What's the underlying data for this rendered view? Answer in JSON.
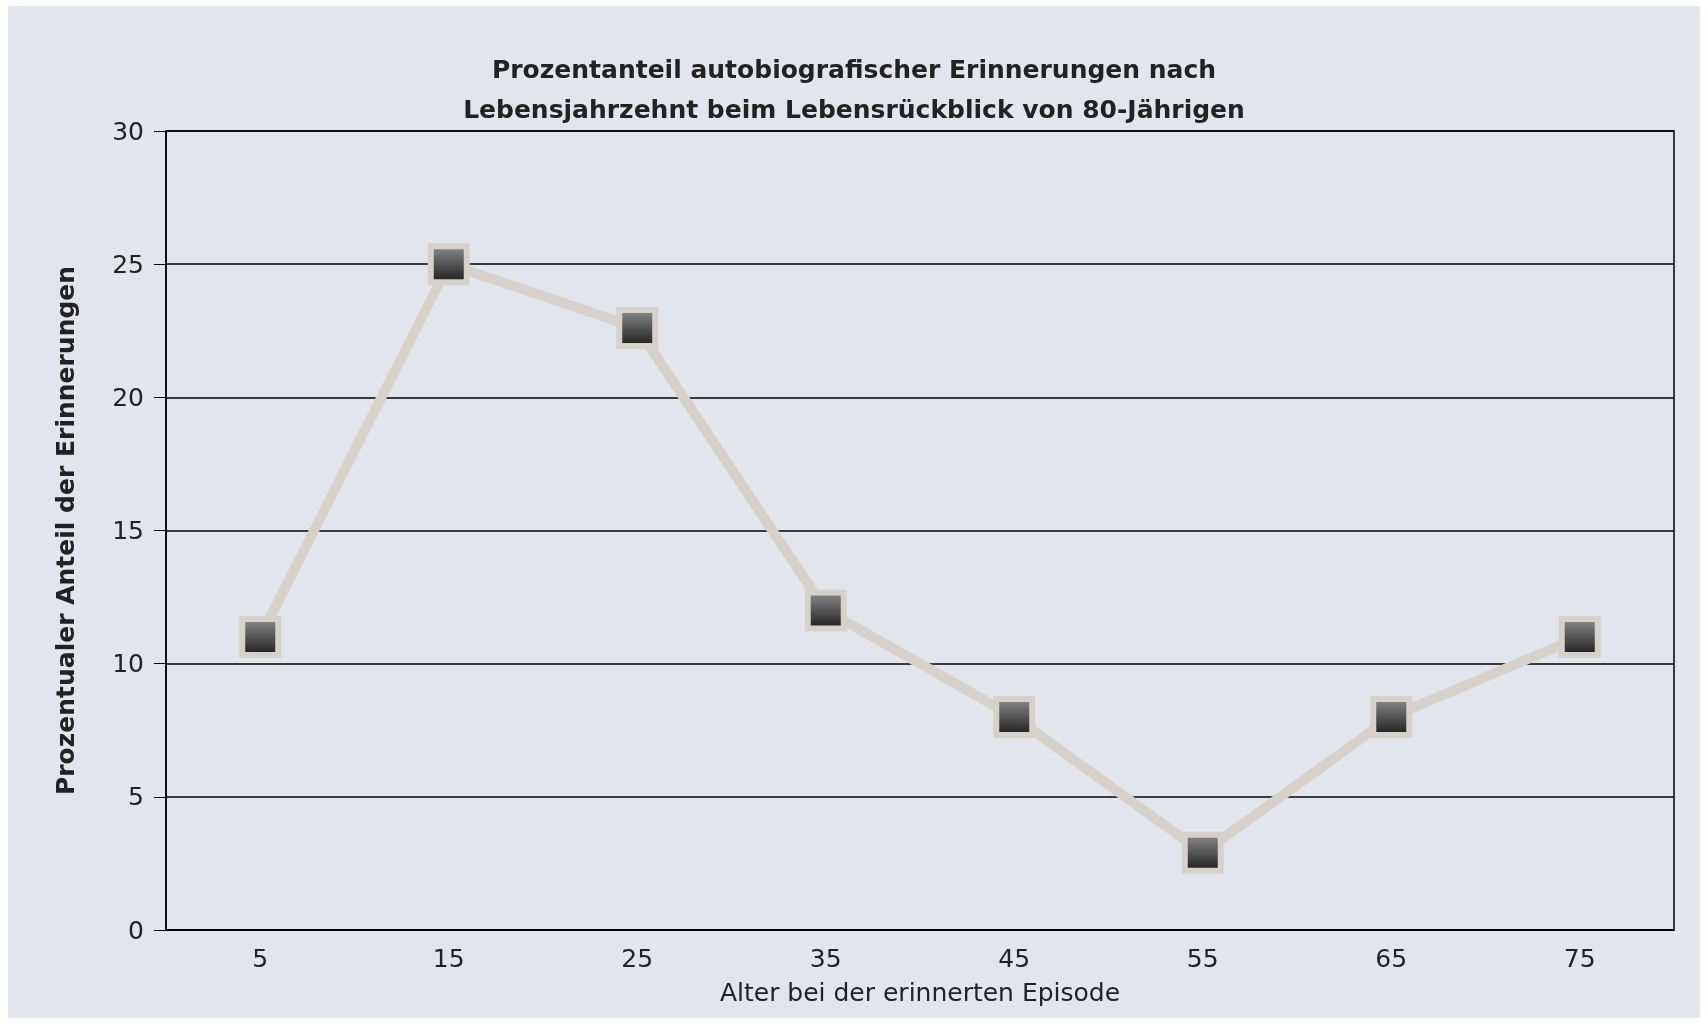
{
  "chart_data": {
    "type": "line",
    "title": "Prozentanteil autobiografischer Erinnerungen nach\nLebensjahrzehnt beim Lebensrückblick von 80-Jährigen",
    "xlabel": "Alter bei der erinnerten Episode",
    "ylabel": "Prozentualer Anteil der Erinnerungen",
    "categories": [
      "5",
      "15",
      "25",
      "35",
      "45",
      "55",
      "65",
      "75"
    ],
    "series": [
      {
        "color": "#d6d1ca",
        "values": [
          11,
          25,
          22.6,
          12,
          8,
          2.9,
          8,
          11
        ]
      }
    ],
    "ylim": [
      0,
      30
    ],
    "yticks": [
      0,
      5,
      10,
      15,
      20,
      25,
      30
    ],
    "grid": "y",
    "marker": "square",
    "line_style": "solid"
  }
}
